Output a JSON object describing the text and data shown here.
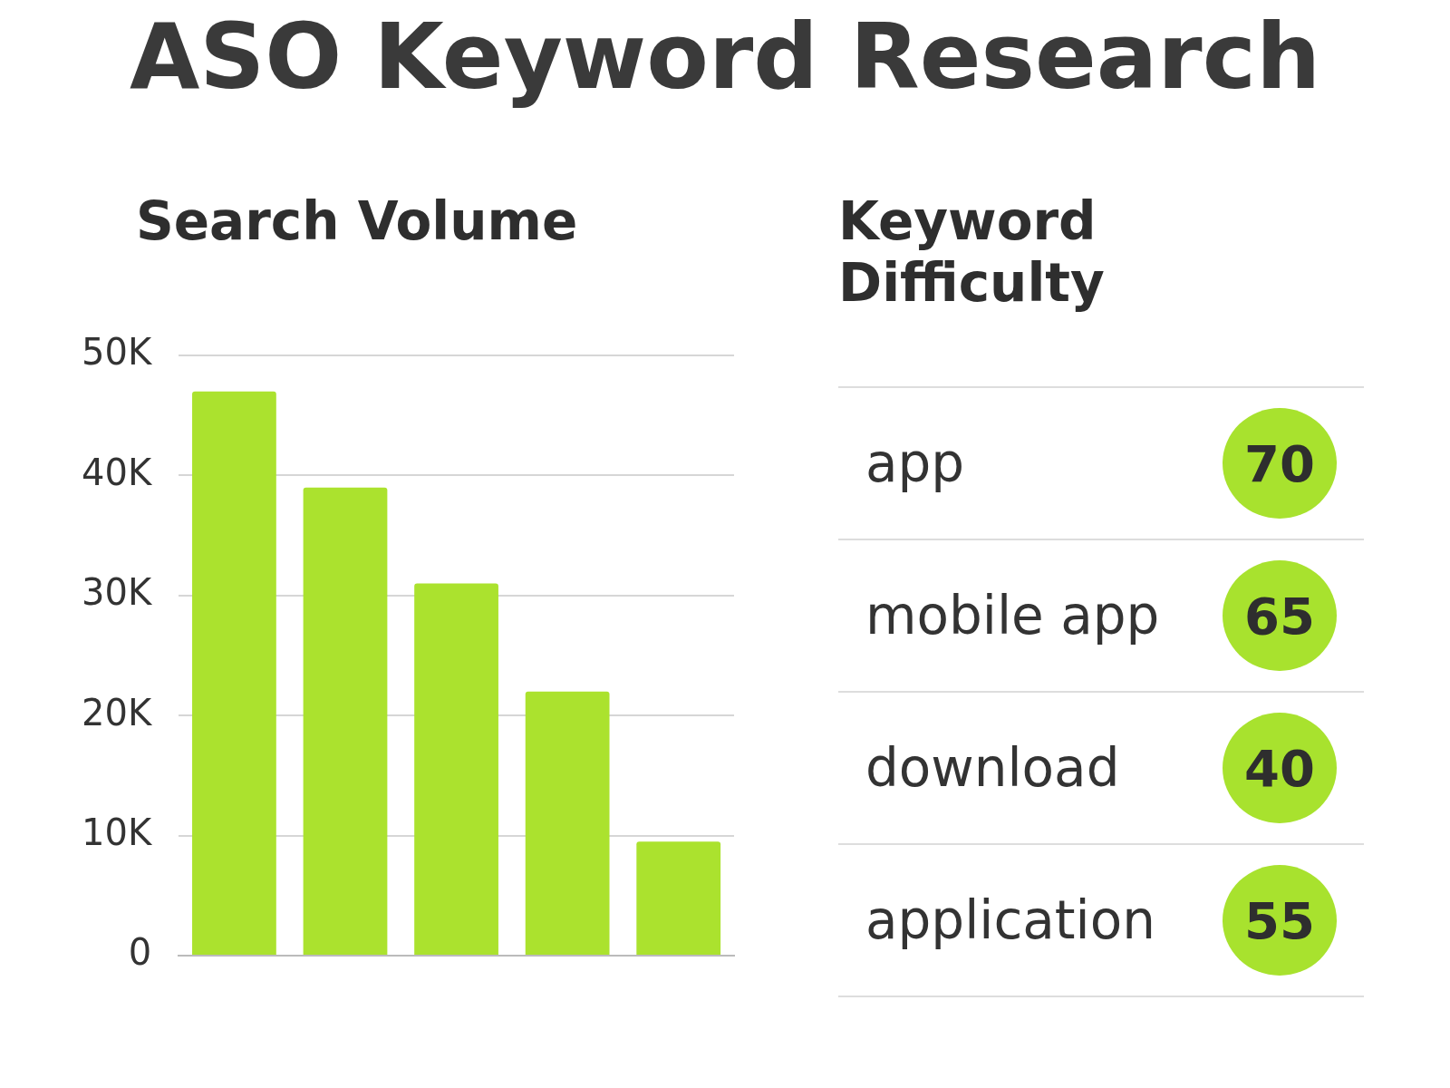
{
  "chart_data": [
    {
      "type": "bar",
      "title": "ASO Keyword Research",
      "subtitle": "Search Volume",
      "categories": [
        null,
        null,
        null,
        null,
        null
      ],
      "values": [
        47000,
        39000,
        31000,
        22000,
        9500
      ],
      "color": "#abe22e",
      "ylim": [
        0,
        50000
      ],
      "yticks": [
        0,
        {
          "value": 10000,
          "label": "10K"
        },
        {
          "value": 20000,
          "label": "20K"
        },
        {
          "value": 30000,
          "label": "30K"
        },
        {
          "value": 40000,
          "label": "40K"
        },
        {
          "value": 50000,
          "label": "50K"
        }
      ],
      "grid": "y",
      "tick_labels": "y",
      "legend": false
    },
    {
      "type": "other",
      "title": "Keyword Difficulty",
      "categories": [
        "app",
        "mobile app",
        "download",
        "application"
      ],
      "values": [
        70,
        65,
        40,
        55
      ],
      "color": "#a8e22e",
      "data_labels": true
    }
  ]
}
